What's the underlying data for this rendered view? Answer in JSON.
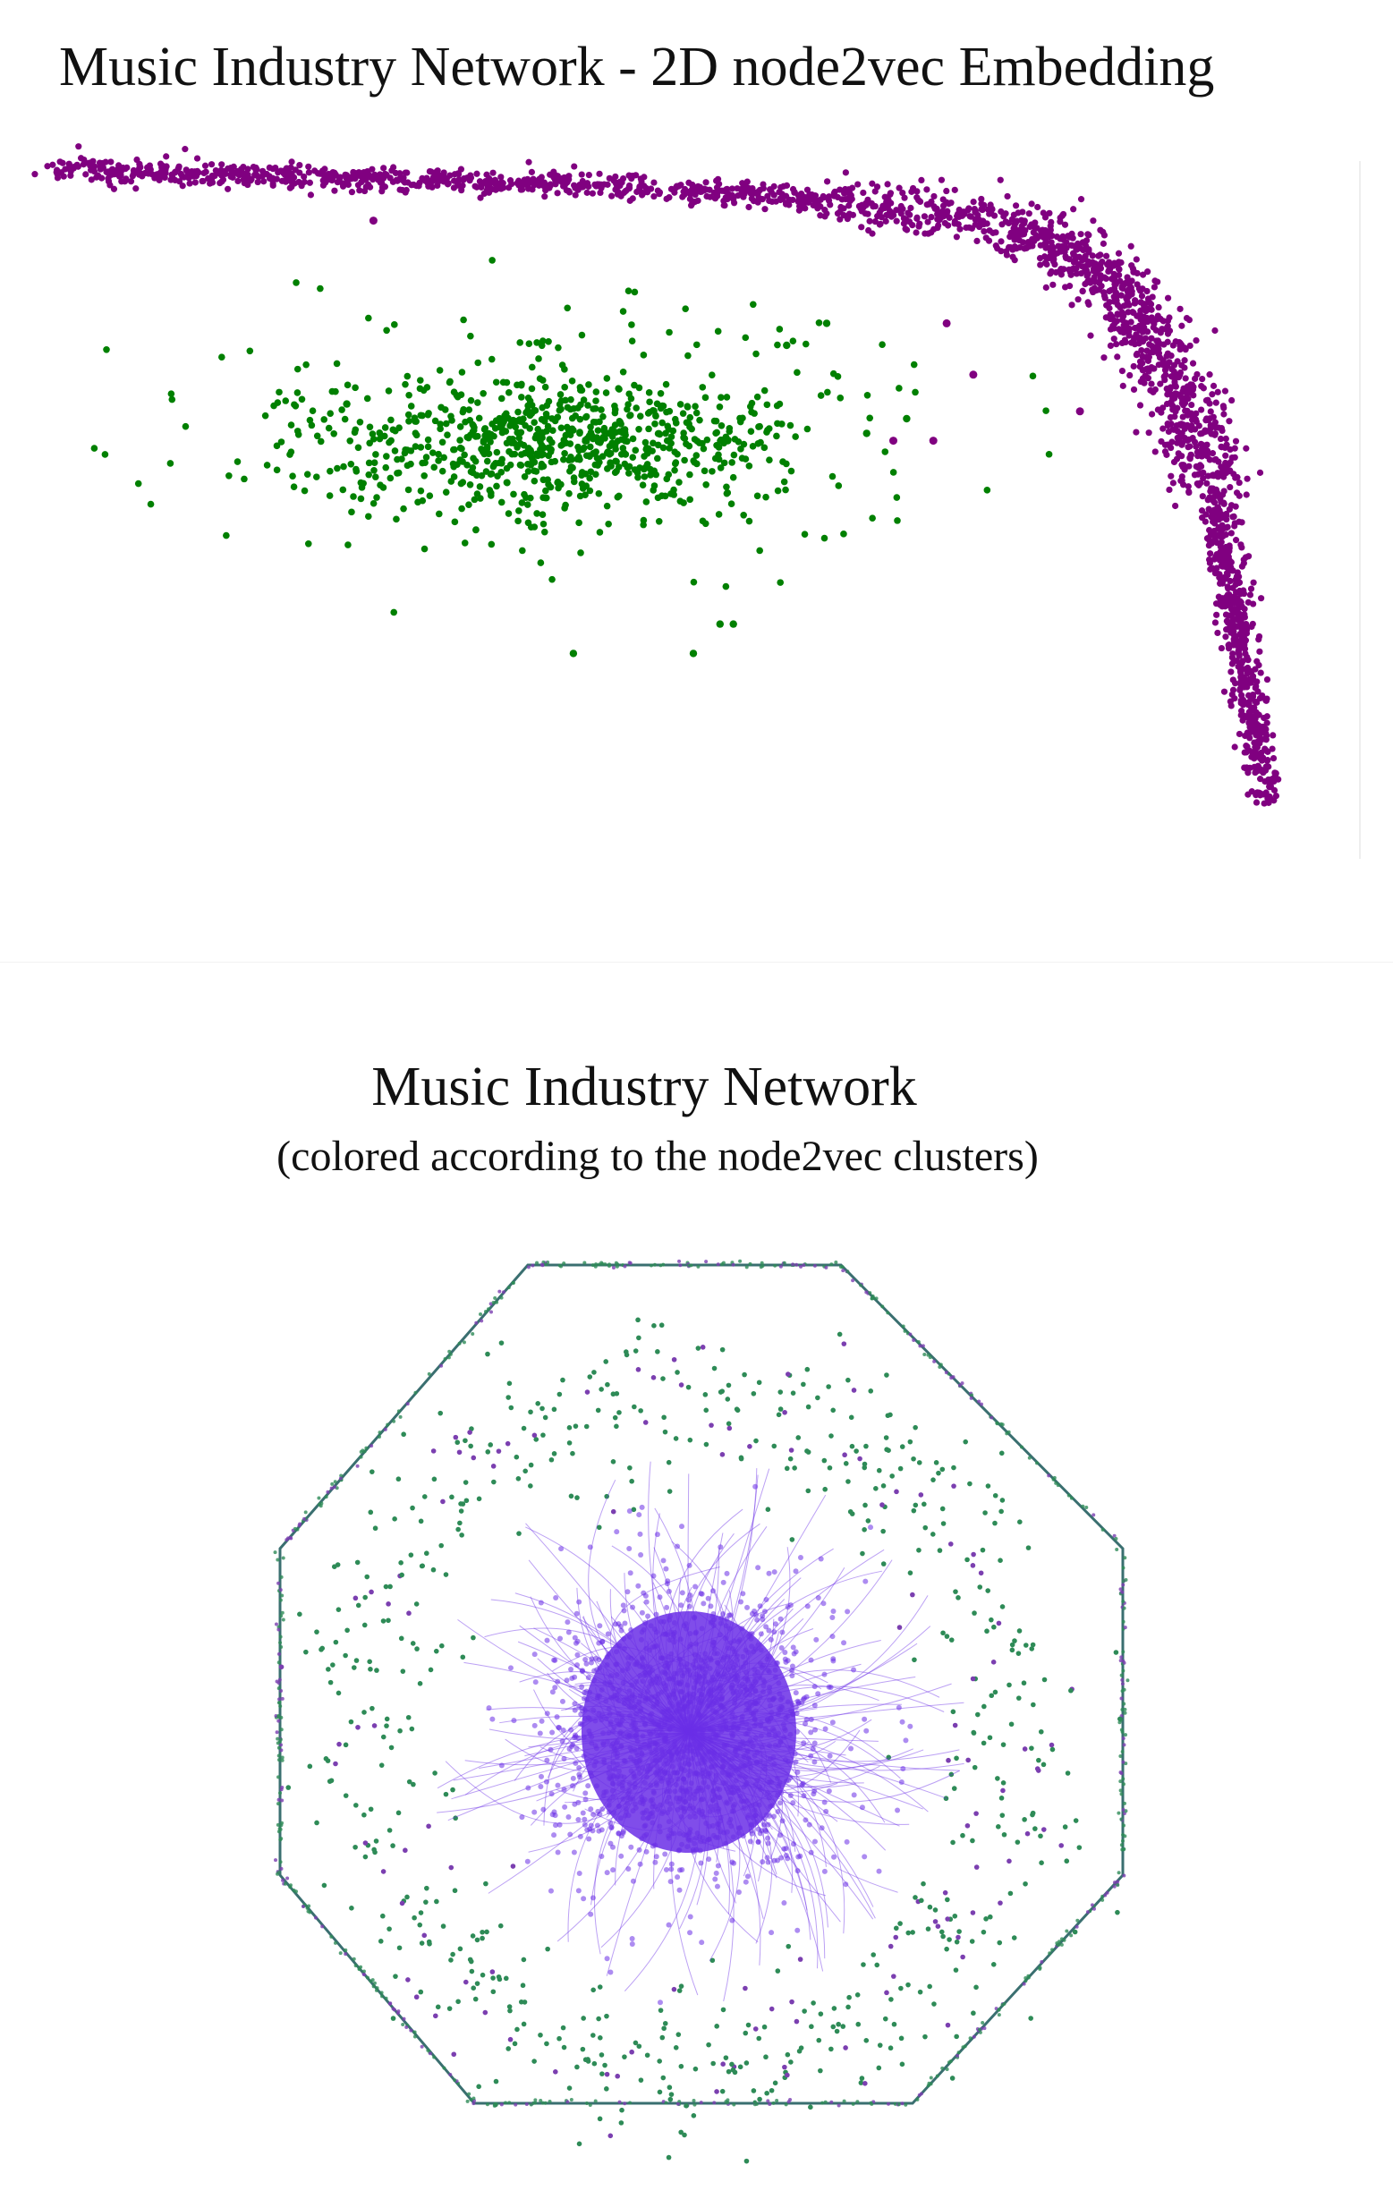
{
  "chart_data": [
    {
      "type": "scatter",
      "title": "Music Industry Network - 2D node2vec Embedding",
      "xlabel": "",
      "ylabel": "",
      "axes_visible": false,
      "grid": false,
      "legend": "none",
      "series": [
        {
          "color": "#800080",
          "description_points": "dense arc along top then down right edge",
          "anchor_path": [
            [
              0.02,
              0.06
            ],
            [
              0.2,
              0.07
            ],
            [
              0.4,
              0.08
            ],
            [
              0.6,
              0.1
            ],
            [
              0.75,
              0.14
            ],
            [
              0.82,
              0.22
            ],
            [
              0.86,
              0.35
            ],
            [
              0.89,
              0.5
            ],
            [
              0.91,
              0.7
            ],
            [
              0.93,
              0.92
            ]
          ],
          "outliers": [
            [
              0.26,
              0.13
            ],
            [
              0.69,
              0.27
            ],
            [
              0.71,
              0.34
            ],
            [
              0.79,
              0.39
            ],
            [
              0.68,
              0.43
            ],
            [
              0.65,
              0.43
            ]
          ]
        },
        {
          "color": "#008000",
          "center": [
            0.4,
            0.43
          ],
          "spread": [
            0.1,
            0.06
          ],
          "outliers": [
            [
              0.41,
              0.72
            ],
            [
              0.5,
              0.72
            ],
            [
              0.52,
              0.68
            ],
            [
              0.53,
              0.68
            ],
            [
              0.63,
              0.42
            ],
            [
              0.66,
              0.4
            ],
            [
              0.6,
              0.27
            ],
            [
              0.57,
              0.3
            ],
            [
              0.24,
              0.38
            ]
          ]
        }
      ]
    },
    {
      "type": "network",
      "title": "Music Industry Network",
      "subtitle": "(colored according to the node2vec clusters)",
      "colors": {
        "core_edges": "#6a2ee6",
        "cluster_green": "#2e8b57",
        "cluster_purple": "#7b3fb0",
        "octagon": "#3a6f70"
      }
    }
  ]
}
